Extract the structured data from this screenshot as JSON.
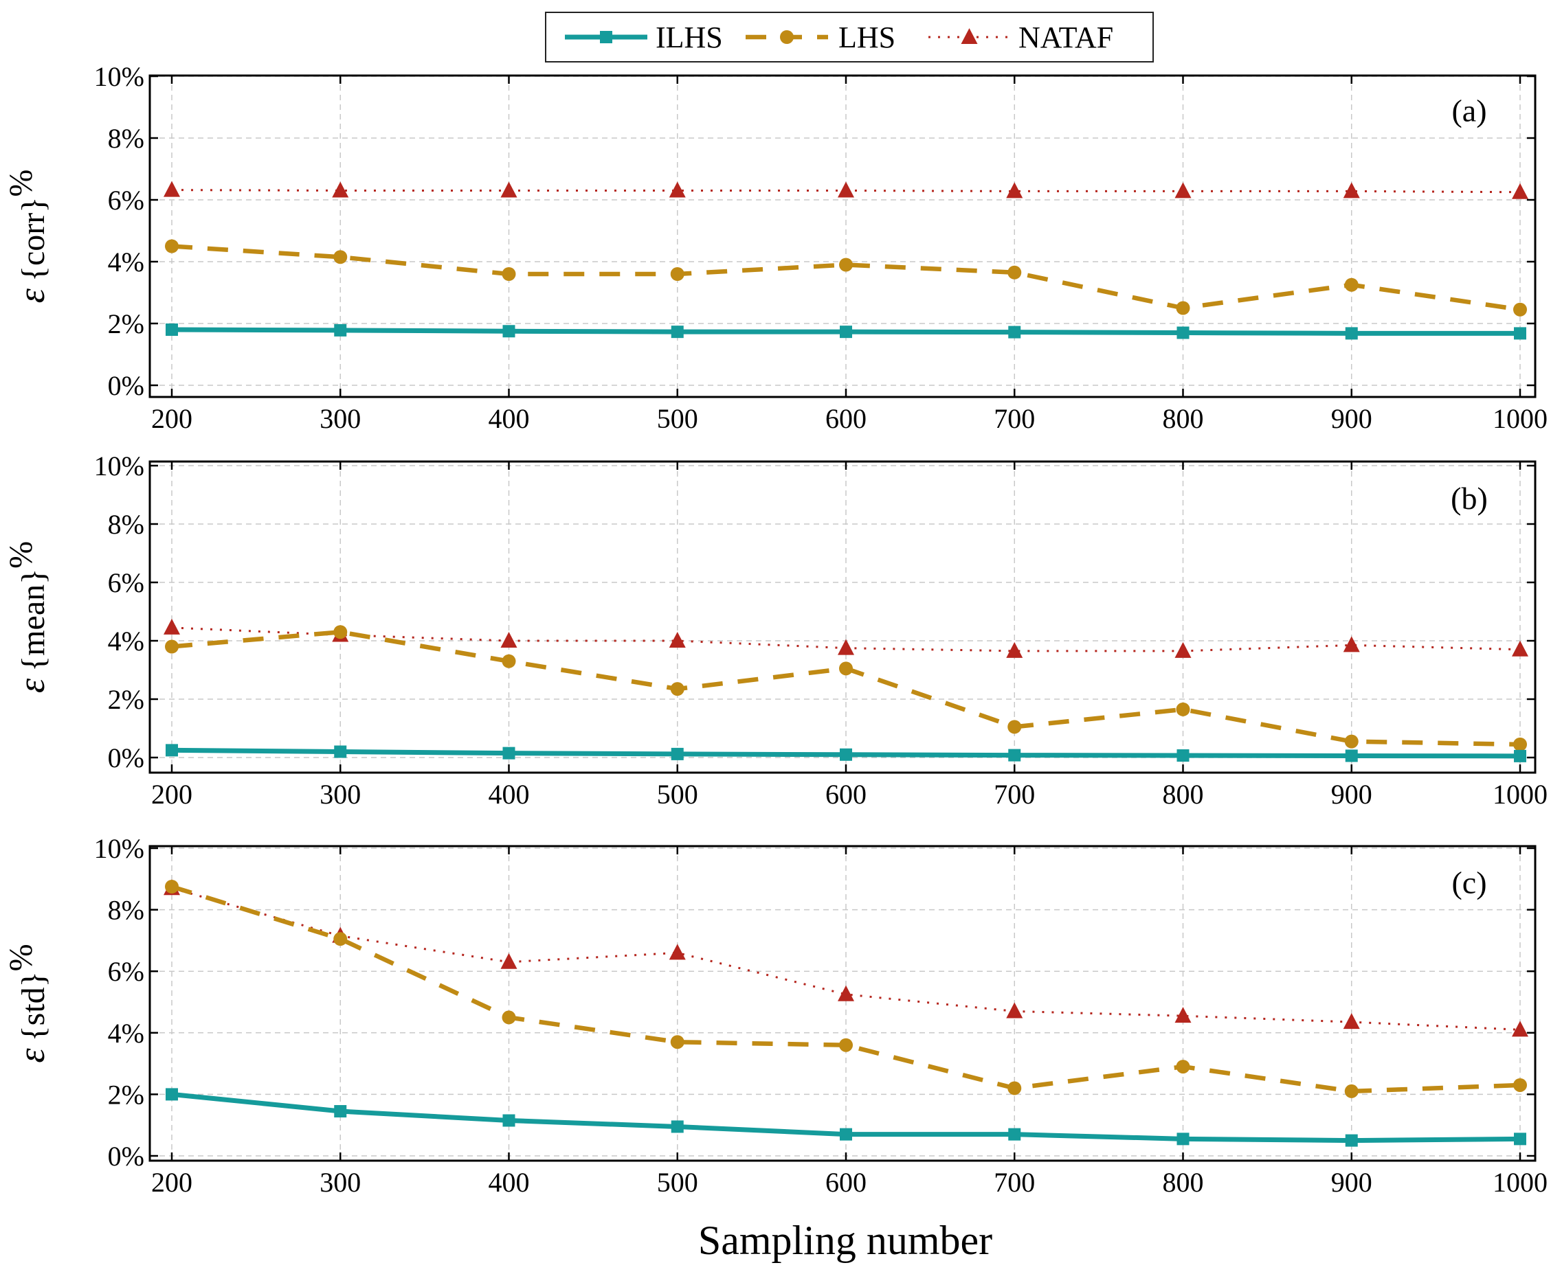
{
  "chart_data": {
    "type": "line",
    "xlabel": "Sampling number",
    "legend": {
      "placement": "top-center",
      "entries": [
        {
          "name": "ILHS",
          "color": "#159b9b",
          "marker": "square",
          "line": "solid"
        },
        {
          "name": "LHS",
          "color": "#c08a14",
          "marker": "circle",
          "line": "dashed"
        },
        {
          "name": "NATAF",
          "color": "#b5261e",
          "marker": "triangle",
          "line": "dotted"
        }
      ]
    },
    "x": [
      200,
      300,
      400,
      500,
      600,
      700,
      800,
      900,
      1000
    ],
    "x_tick_labels": [
      "200",
      "300",
      "400",
      "500",
      "600",
      "700",
      "800",
      "900",
      "1000"
    ],
    "xlim": [
      200,
      1000
    ],
    "ylim": [
      0,
      10
    ],
    "y_ticks": [
      0,
      2,
      4,
      6,
      8,
      10
    ],
    "y_tick_labels": [
      "0%",
      "2%",
      "4%",
      "6%",
      "8%",
      "10%"
    ],
    "grid": true,
    "panels": [
      {
        "tag": "(a)",
        "ylabel_symbol": "ε",
        "ylabel_text": "{corr}",
        "ylabel_unit": "%",
        "series": [
          {
            "name": "ILHS",
            "values": [
              1.8,
              1.78,
              1.75,
              1.73,
              1.73,
              1.72,
              1.7,
              1.68,
              1.68
            ]
          },
          {
            "name": "LHS",
            "values": [
              4.5,
              4.15,
              3.6,
              3.6,
              3.9,
              3.65,
              2.5,
              3.25,
              2.45
            ]
          },
          {
            "name": "NATAF",
            "values": [
              6.32,
              6.3,
              6.3,
              6.3,
              6.3,
              6.28,
              6.28,
              6.28,
              6.25
            ]
          }
        ]
      },
      {
        "tag": "(b)",
        "ylabel_symbol": "ε",
        "ylabel_text": "{mean}",
        "ylabel_unit": "%",
        "series": [
          {
            "name": "ILHS",
            "values": [
              0.25,
              0.2,
              0.15,
              0.12,
              0.1,
              0.08,
              0.07,
              0.06,
              0.05
            ]
          },
          {
            "name": "LHS",
            "values": [
              3.8,
              4.3,
              3.3,
              2.35,
              3.05,
              1.05,
              1.65,
              0.55,
              0.45
            ]
          },
          {
            "name": "NATAF",
            "values": [
              4.45,
              4.2,
              4.0,
              4.0,
              3.75,
              3.65,
              3.65,
              3.85,
              3.7
            ]
          }
        ]
      },
      {
        "tag": "(c)",
        "ylabel_symbol": "ε",
        "ylabel_text": "{std}",
        "ylabel_unit": "%",
        "series": [
          {
            "name": "ILHS",
            "values": [
              2.0,
              1.45,
              1.15,
              0.95,
              0.7,
              0.7,
              0.55,
              0.5,
              0.55
            ]
          },
          {
            "name": "LHS",
            "values": [
              8.75,
              7.05,
              4.5,
              3.7,
              3.6,
              2.2,
              2.9,
              2.1,
              2.3
            ]
          },
          {
            "name": "NATAF",
            "values": [
              8.7,
              7.15,
              6.3,
              6.6,
              5.25,
              4.7,
              4.55,
              4.35,
              4.1
            ]
          }
        ]
      }
    ]
  }
}
